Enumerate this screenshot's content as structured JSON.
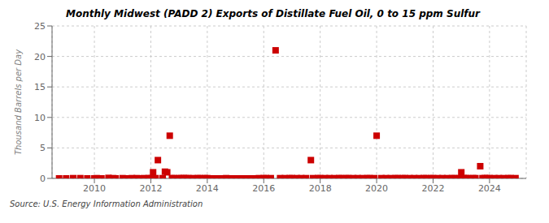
{
  "chart_data": {
    "type": "scatter",
    "title": "Monthly Midwest (PADD 2) Exports of Distillate Fuel Oil, 0 to 15 ppm Sulfur",
    "ylabel": "Thousand Barrels per Day",
    "source": "Source: U.S. Energy Information Administration",
    "color": "#cc0000",
    "marker": "square",
    "grid": true,
    "xlim": [
      2008.5,
      2025.3
    ],
    "ylim": [
      0,
      25
    ],
    "xticks": [
      2010,
      2012,
      2014,
      2016,
      2018,
      2020,
      2022,
      2024
    ],
    "yticks": [
      0,
      5,
      10,
      15,
      20,
      25
    ],
    "x": [
      2008.75,
      2009.0,
      2009.25,
      2009.5,
      2009.75,
      2010.0,
      2010.08,
      2010.25,
      2010.5,
      2010.67,
      2010.75,
      2011.0,
      2011.17,
      2011.33,
      2011.5,
      2011.67,
      2011.75,
      2011.92,
      2012.0,
      2012.08,
      2012.17,
      2012.25,
      2012.42,
      2012.5,
      2012.58,
      2012.67,
      2012.75,
      2012.83,
      2013.0,
      2013.08,
      2013.17,
      2013.25,
      2013.33,
      2013.5,
      2013.67,
      2013.75,
      2013.92,
      2014.0,
      2014.17,
      2014.33,
      2014.5,
      2014.67,
      2014.83,
      2015.0,
      2015.17,
      2015.33,
      2015.5,
      2015.67,
      2015.83,
      2016.0,
      2016.08,
      2016.25,
      2016.42,
      2016.58,
      2016.75,
      2016.92,
      2017.0,
      2017.17,
      2017.33,
      2017.5,
      2017.67,
      2017.75,
      2017.92,
      2018.0,
      2018.17,
      2018.33,
      2018.5,
      2018.67,
      2018.75,
      2018.92,
      2019.0,
      2019.17,
      2019.33,
      2019.5,
      2019.67,
      2019.75,
      2019.92,
      2020.0,
      2020.17,
      2020.33,
      2020.5,
      2020.67,
      2020.75,
      2020.92,
      2021.0,
      2021.17,
      2021.33,
      2021.5,
      2021.67,
      2021.75,
      2021.92,
      2022.0,
      2022.17,
      2022.33,
      2022.5,
      2022.67,
      2022.75,
      2022.92,
      2023.0,
      2023.08,
      2023.17,
      2023.25,
      2023.42,
      2023.5,
      2023.67,
      2023.75,
      2023.83,
      2023.92,
      2024.0,
      2024.17,
      2024.33,
      2024.5,
      2024.67,
      2024.75,
      2024.92
    ],
    "values": [
      0.0,
      0.0,
      0.04,
      0.04,
      0.0,
      0.0,
      0.04,
      0.0,
      0.08,
      0.04,
      0.0,
      0.04,
      0.0,
      0.04,
      0.04,
      0.0,
      0.04,
      0.04,
      0.04,
      1.0,
      0.04,
      3.0,
      0.04,
      1.1,
      1.0,
      7.0,
      0.04,
      0.04,
      0.04,
      0.04,
      0.04,
      0.04,
      0.04,
      0.04,
      0.04,
      0.04,
      0.04,
      0.04,
      0.0,
      0.0,
      0.0,
      0.04,
      0.0,
      0.0,
      0.0,
      0.0,
      0.0,
      0.0,
      0.04,
      0.04,
      0.04,
      0.04,
      21.0,
      0.04,
      0.04,
      0.04,
      0.04,
      0.04,
      0.04,
      0.04,
      3.0,
      0.04,
      0.04,
      0.04,
      0.04,
      0.04,
      0.04,
      0.04,
      0.04,
      0.04,
      0.04,
      0.04,
      0.04,
      0.04,
      0.04,
      0.04,
      0.04,
      7.0,
      0.04,
      0.04,
      0.04,
      0.04,
      0.04,
      0.04,
      0.04,
      0.04,
      0.04,
      0.04,
      0.04,
      0.04,
      0.04,
      0.04,
      0.04,
      0.04,
      0.04,
      0.04,
      0.04,
      0.04,
      1.0,
      0.04,
      0.04,
      0.04,
      0.04,
      0.04,
      2.0,
      0.04,
      0.04,
      0.04,
      0.04,
      0.04,
      0.04,
      0.04,
      0.04,
      0.04,
      0.04
    ]
  }
}
